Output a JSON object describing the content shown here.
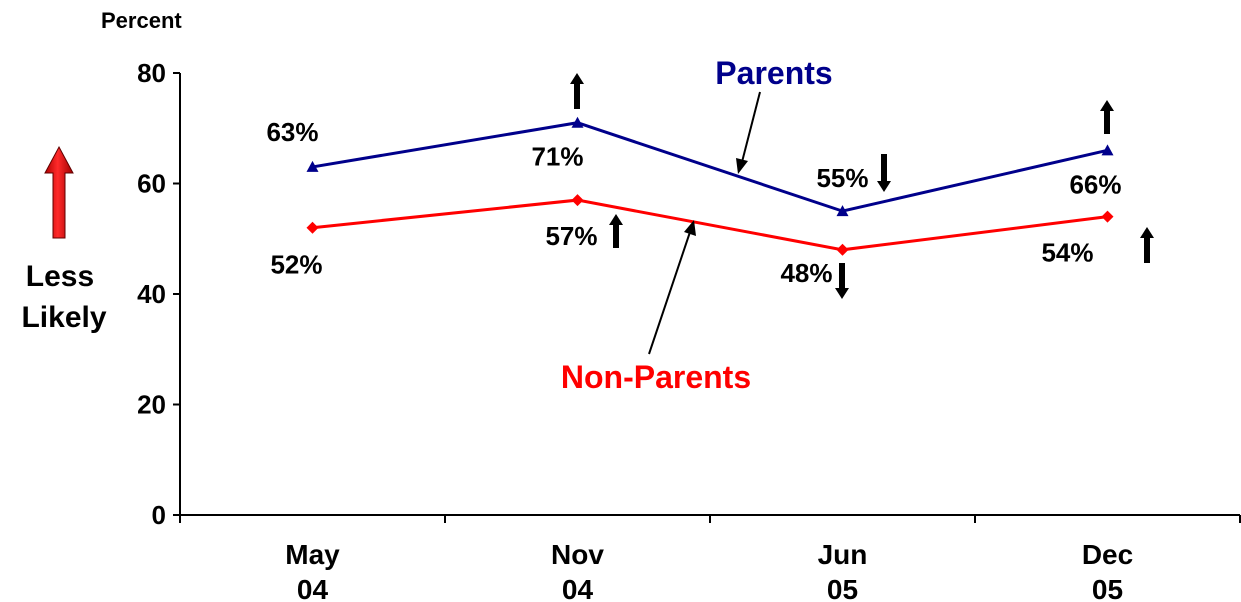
{
  "chart_data": {
    "type": "line",
    "ylabel": "Percent",
    "ylim": [
      0,
      80
    ],
    "yticks": [
      0,
      20,
      40,
      60,
      80
    ],
    "categories": [
      [
        "May",
        "04"
      ],
      [
        "Nov",
        "04"
      ],
      [
        "Jun",
        "05"
      ],
      [
        "Dec",
        "05"
      ]
    ],
    "series": [
      {
        "name": "Parents",
        "color": "#00008B",
        "marker": "triangle",
        "values": [
          63,
          71,
          55,
          66
        ],
        "labels": [
          "63%",
          "71%",
          "55%",
          "66%"
        ],
        "change_arrows": [
          null,
          "up",
          "down",
          "up"
        ]
      },
      {
        "name": "Non-Parents",
        "color": "#FF0000",
        "marker": "diamond",
        "values": [
          52,
          57,
          48,
          54
        ],
        "labels": [
          "52%",
          "57%",
          "48%",
          "54%"
        ],
        "change_arrows": [
          null,
          "up",
          "down",
          "up"
        ]
      }
    ],
    "side_label": [
      "Less",
      "Likely"
    ],
    "side_arrow_color": "#FF0000",
    "grid": false,
    "legend": "inline labels with pointer arrows"
  }
}
